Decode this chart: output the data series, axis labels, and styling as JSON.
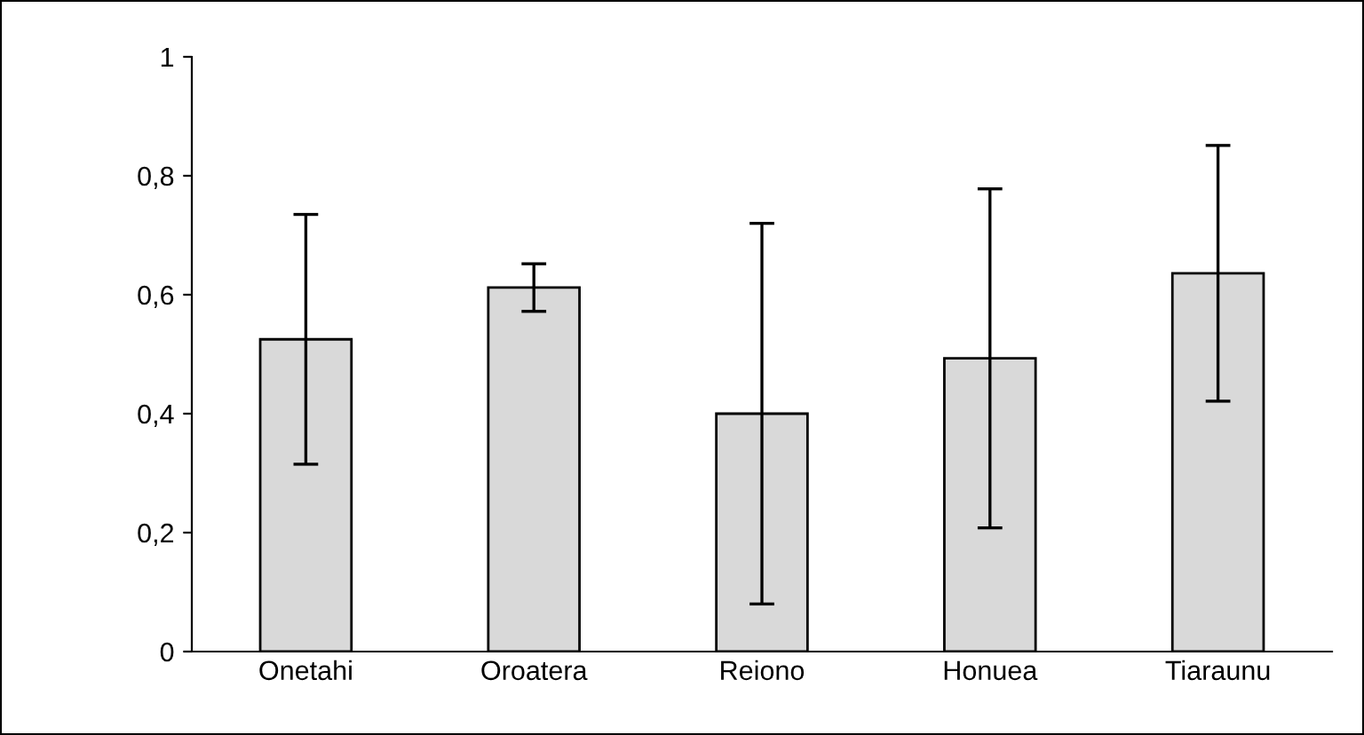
{
  "chart_data": {
    "type": "bar",
    "categories": [
      "Onetahi",
      "Oroatera",
      "Reiono",
      "Honuea",
      "Tiaraunu"
    ],
    "values": [
      0.525,
      0.612,
      0.4,
      0.493,
      0.636
    ],
    "errors": [
      0.21,
      0.04,
      0.32,
      0.285,
      0.215
    ],
    "color": "#d9d9d9",
    "ylim": [
      0,
      1
    ],
    "yticks": [
      0,
      {
        "value": 0.2,
        "label": "0,2"
      },
      {
        "value": 0.4,
        "label": "0,4"
      },
      {
        "value": 0.6,
        "label": "0,6"
      },
      {
        "value": 0.8,
        "label": "0,8"
      },
      1
    ],
    "grid": false,
    "legend": false
  }
}
